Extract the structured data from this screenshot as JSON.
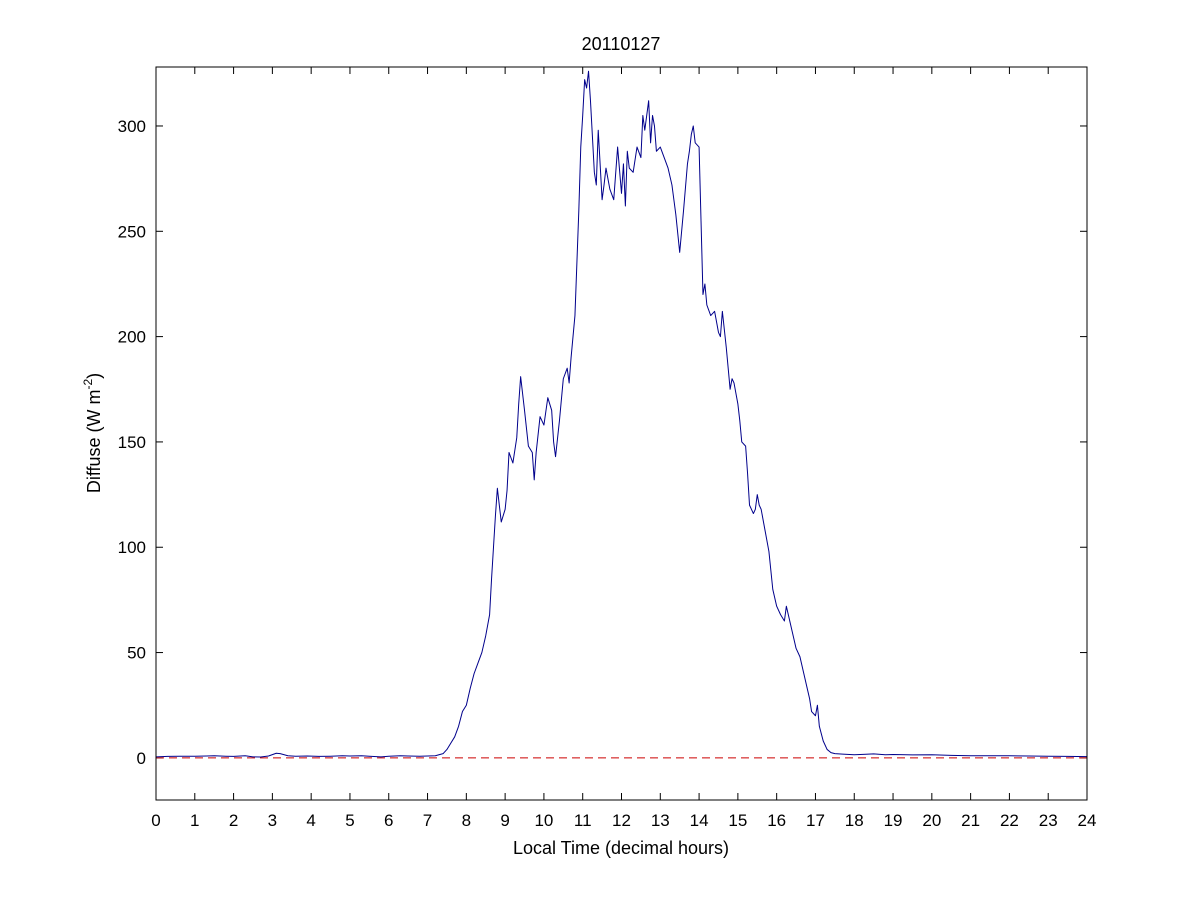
{
  "chart_data": {
    "type": "line",
    "title": "20110127",
    "xlabel": "Local Time (decimal hours)",
    "ylabel": {
      "text": "Diffuse (W m",
      "superscript": "-2",
      "suffix": ")"
    },
    "xlim": [
      0,
      24
    ],
    "ylim": [
      -20,
      328
    ],
    "xticks": [
      0,
      1,
      2,
      3,
      4,
      5,
      6,
      7,
      8,
      9,
      10,
      11,
      12,
      13,
      14,
      15,
      16,
      17,
      18,
      19,
      20,
      21,
      22,
      23,
      24
    ],
    "yticks": [
      0,
      50,
      100,
      150,
      200,
      250,
      300
    ],
    "grid": false,
    "series": [
      {
        "color": "#00008b",
        "style": "solid",
        "x": [
          0,
          0.3,
          0.6,
          1.0,
          1.3,
          1.5,
          1.8,
          2.0,
          2.3,
          2.5,
          2.7,
          2.9,
          3.1,
          3.2,
          3.4,
          3.6,
          3.9,
          4.2,
          4.5,
          4.8,
          5.0,
          5.3,
          5.5,
          5.8,
          6.0,
          6.3,
          6.5,
          6.8,
          7.0,
          7.2,
          7.4,
          7.5,
          7.6,
          7.7,
          7.8,
          7.9,
          8.0,
          8.1,
          8.2,
          8.3,
          8.4,
          8.5,
          8.6,
          8.65,
          8.7,
          8.75,
          8.8,
          8.9,
          9.0,
          9.05,
          9.1,
          9.2,
          9.3,
          9.35,
          9.4,
          9.5,
          9.6,
          9.7,
          9.75,
          9.8,
          9.9,
          10.0,
          10.1,
          10.2,
          10.25,
          10.3,
          10.4,
          10.5,
          10.6,
          10.65,
          10.7,
          10.8,
          10.9,
          10.95,
          11.0,
          11.05,
          11.1,
          11.15,
          11.2,
          11.25,
          11.3,
          11.35,
          11.4,
          11.5,
          11.55,
          11.6,
          11.7,
          11.8,
          11.9,
          12.0,
          12.05,
          12.1,
          12.15,
          12.2,
          12.3,
          12.4,
          12.5,
          12.55,
          12.6,
          12.7,
          12.75,
          12.8,
          12.85,
          12.9,
          13.0,
          13.1,
          13.2,
          13.3,
          13.4,
          13.5,
          13.6,
          13.7,
          13.75,
          13.8,
          13.85,
          13.9,
          14.0,
          14.05,
          14.1,
          14.15,
          14.2,
          14.3,
          14.4,
          14.5,
          14.55,
          14.6,
          14.7,
          14.75,
          14.8,
          14.85,
          14.9,
          15.0,
          15.05,
          15.1,
          15.2,
          15.25,
          15.3,
          15.4,
          15.45,
          15.5,
          15.55,
          15.6,
          15.7,
          15.8,
          15.9,
          16.0,
          16.1,
          16.2,
          16.25,
          16.3,
          16.4,
          16.5,
          16.6,
          16.7,
          16.8,
          16.85,
          16.9,
          17.0,
          17.05,
          17.1,
          17.2,
          17.3,
          17.4,
          17.5,
          17.7,
          18.0,
          18.3,
          18.5,
          18.8,
          19.0,
          19.5,
          20.0,
          20.5,
          21.0,
          21.5,
          22.0,
          22.5,
          23.0,
          23.5,
          24.0
        ],
        "y": [
          0.5,
          0.7,
          0.8,
          0.8,
          0.9,
          1.0,
          0.8,
          0.7,
          1.0,
          0.5,
          0.4,
          0.9,
          2.2,
          2.0,
          1.0,
          0.8,
          0.9,
          0.7,
          0.8,
          1.0,
          0.9,
          1.0,
          0.8,
          0.5,
          0.8,
          1.0,
          0.9,
          0.8,
          0.9,
          1.0,
          2.0,
          4.0,
          7.0,
          10.0,
          15.0,
          22.0,
          25.0,
          33.0,
          40.0,
          45.0,
          50.0,
          58.0,
          68.0,
          85.0,
          100.0,
          115.0,
          128.0,
          112.0,
          118.0,
          127.0,
          145.0,
          140.0,
          152.0,
          168.0,
          181.0,
          165.0,
          148.0,
          145.0,
          132.0,
          145.0,
          162.0,
          158.0,
          171.0,
          165.0,
          150.0,
          143.0,
          160.0,
          180.0,
          185.0,
          178.0,
          190.0,
          210.0,
          260.0,
          290.0,
          305.0,
          322.0,
          318.0,
          326.0,
          312.0,
          295.0,
          278.0,
          272.0,
          298.0,
          265.0,
          272.0,
          280.0,
          270.0,
          265.0,
          290.0,
          268.0,
          282.0,
          262.0,
          288.0,
          280.0,
          278.0,
          290.0,
          285.0,
          305.0,
          298.0,
          312.0,
          292.0,
          305.0,
          300.0,
          288.0,
          290.0,
          285.0,
          280.0,
          272.0,
          258.0,
          240.0,
          260.0,
          282.0,
          288.0,
          296.0,
          300.0,
          292.0,
          290.0,
          255.0,
          220.0,
          225.0,
          215.0,
          210.0,
          212.0,
          202.0,
          200.0,
          212.0,
          195.0,
          185.0,
          175.0,
          180.0,
          178.0,
          168.0,
          160.0,
          150.0,
          148.0,
          135.0,
          120.0,
          116.0,
          118.0,
          125.0,
          120.0,
          118.0,
          108.0,
          98.0,
          80.0,
          72.0,
          68.0,
          65.0,
          72.0,
          68.0,
          60.0,
          52.0,
          48.0,
          40.0,
          32.0,
          28.0,
          22.0,
          20.0,
          25.0,
          15.0,
          8.0,
          4.0,
          2.5,
          2.0,
          1.8,
          1.5,
          1.7,
          1.9,
          1.5,
          1.6,
          1.4,
          1.5,
          1.2,
          1.0,
          1.0,
          1.0,
          0.9,
          0.8,
          0.7,
          0.6
        ]
      },
      {
        "color": "#cc0000",
        "style": "dashed",
        "x": [
          0,
          24
        ],
        "y": [
          0,
          0
        ]
      }
    ]
  }
}
